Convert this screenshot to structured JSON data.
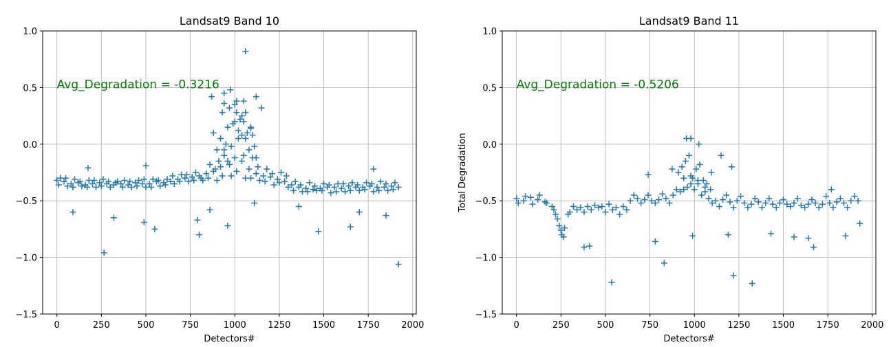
{
  "chart_data": [
    {
      "type": "scatter",
      "title": "Landsat9 Band 10",
      "xlabel": "Detectors#",
      "ylabel": "",
      "xlim": [
        -80,
        2020
      ],
      "ylim": [
        -1.5,
        1.0
      ],
      "xticks": [
        0,
        250,
        500,
        750,
        1000,
        1250,
        1500,
        1750,
        2000
      ],
      "yticks": [
        -1.5,
        -1.0,
        -0.5,
        0.0,
        0.5,
        1.0
      ],
      "xtick_labels": [
        "0",
        "250",
        "500",
        "750",
        "1000",
        "1250",
        "1500",
        "1750",
        "2000"
      ],
      "ytick_labels": [
        "−1.5",
        "−1.0",
        "−0.5",
        "0.0",
        "0.5",
        "1.0"
      ],
      "grid": true,
      "marker": "+",
      "color": "#1f77b4",
      "annotation": {
        "text": "Avg_Degradation = -0.3216",
        "x": 0,
        "y": 0.5,
        "color": "#008000"
      },
      "series": [
        {
          "x": [
            0,
            40,
            80,
            120,
            160,
            200,
            240,
            280,
            320,
            360,
            400,
            440,
            480,
            520,
            560,
            600,
            640,
            680,
            720,
            760,
            800,
            840,
            880,
            920,
            960,
            1000,
            1040,
            1080,
            1120,
            1160,
            1200,
            1240,
            1280,
            1320,
            1360,
            1400,
            1440,
            1480,
            1520,
            1560,
            1600,
            1640,
            1680,
            1720,
            1760,
            1800,
            1840,
            1880,
            1920,
            10,
            50,
            90,
            130,
            170,
            210,
            250,
            290,
            330,
            370,
            410,
            450,
            490,
            530,
            570,
            610,
            650,
            690,
            730,
            770,
            810,
            850,
            890,
            930,
            970,
            1010,
            1050,
            1090,
            1130,
            1170,
            1210,
            1250,
            1290,
            1330,
            1370,
            1410,
            1450,
            1490,
            1530,
            1570,
            1610,
            1650,
            1690,
            1730,
            1770,
            1810,
            1850,
            1890,
            20,
            60,
            100,
            140,
            180,
            220,
            260,
            300,
            340,
            380,
            420,
            460,
            500,
            540,
            580,
            620,
            660,
            700,
            740,
            780,
            820,
            860,
            900,
            940,
            980,
            1020,
            1060,
            1100,
            1140,
            1180,
            1220,
            1260,
            1300,
            1340,
            1380,
            1420,
            1460,
            1500,
            1540,
            1580,
            1620,
            1660,
            1700,
            1740,
            1780,
            1820,
            1860,
            1900,
            880,
            900,
            920,
            940,
            960,
            980,
            1000,
            1020,
            1040,
            1060,
            1080,
            1100,
            1120,
            910,
            950,
            990,
            1030,
            1070,
            1110,
            930,
            970,
            1010,
            1050,
            1090,
            940,
            1000,
            1060,
            1060,
            1050,
            975,
            870,
            1010,
            1120,
            1150,
            940,
            1040,
            1090,
            265,
            320,
            490,
            550,
            790,
            800,
            960,
            1470,
            1650,
            1920,
            90,
            175,
            500,
            860,
            1110,
            1360,
            1700,
            1780,
            1850
          ],
          "y": [
            -0.32,
            -0.33,
            -0.35,
            -0.34,
            -0.36,
            -0.35,
            -0.34,
            -0.35,
            -0.36,
            -0.35,
            -0.36,
            -0.34,
            -0.35,
            -0.35,
            -0.33,
            -0.34,
            -0.33,
            -0.31,
            -0.3,
            -0.29,
            -0.28,
            -0.26,
            -0.24,
            -0.2,
            -0.15,
            -0.12,
            -0.15,
            -0.22,
            -0.26,
            -0.28,
            -0.29,
            -0.31,
            -0.33,
            -0.36,
            -0.38,
            -0.39,
            -0.4,
            -0.39,
            -0.38,
            -0.38,
            -0.39,
            -0.37,
            -0.38,
            -0.38,
            -0.37,
            -0.38,
            -0.38,
            -0.37,
            -0.38,
            -0.36,
            -0.3,
            -0.38,
            -0.33,
            -0.38,
            -0.32,
            -0.37,
            -0.33,
            -0.34,
            -0.38,
            -0.33,
            -0.37,
            -0.31,
            -0.38,
            -0.32,
            -0.36,
            -0.28,
            -0.33,
            -0.27,
            -0.32,
            -0.3,
            -0.3,
            -0.22,
            -0.28,
            -0.18,
            -0.24,
            -0.1,
            -0.3,
            -0.2,
            -0.33,
            -0.26,
            -0.34,
            -0.28,
            -0.41,
            -0.36,
            -0.42,
            -0.37,
            -0.41,
            -0.36,
            -0.42,
            -0.35,
            -0.41,
            -0.36,
            -0.4,
            -0.35,
            -0.41,
            -0.35,
            -0.4,
            -0.3,
            -0.37,
            -0.31,
            -0.37,
            -0.32,
            -0.38,
            -0.31,
            -0.38,
            -0.33,
            -0.32,
            -0.38,
            -0.32,
            -0.38,
            -0.31,
            -0.37,
            -0.31,
            -0.35,
            -0.27,
            -0.33,
            -0.25,
            -0.32,
            -0.18,
            -0.32,
            -0.05,
            -0.28,
            0.05,
            -0.3,
            -0.12,
            -0.32,
            -0.22,
            -0.36,
            -0.25,
            -0.38,
            -0.33,
            -0.42,
            -0.34,
            -0.41,
            -0.35,
            -0.43,
            -0.35,
            -0.42,
            -0.34,
            -0.41,
            -0.34,
            -0.42,
            -0.33,
            -0.41,
            -0.34,
            0.1,
            -0.05,
            0.05,
            -0.1,
            0.15,
            -0.02,
            0.2,
            0.12,
            0.25,
            0.05,
            -0.05,
            0.08,
            -0.12,
            -0.15,
            0.0,
            0.18,
            0.22,
            0.1,
            -0.02,
            0.28,
            0.32,
            0.38,
            0.2,
            0.15,
            0.45,
            0.35,
            0.28,
            0.82,
            0.38,
            0.48,
            0.42,
            0.28,
            0.42,
            0.32,
            0.36,
            0.08,
            0.14,
            -0.96,
            -0.65,
            -0.69,
            -0.75,
            -0.67,
            -0.8,
            -0.72,
            -0.77,
            -0.73,
            -1.06,
            -0.6,
            -0.21,
            -0.19,
            -0.58,
            -0.52,
            -0.55,
            -0.6,
            -0.22,
            -0.63
          ]
        }
      ]
    },
    {
      "type": "scatter",
      "title": "Landsat9 Band 11",
      "xlabel": "Detectors#",
      "ylabel": "Total Degradation",
      "xlim": [
        -80,
        2020
      ],
      "ylim": [
        -1.5,
        1.0
      ],
      "xticks": [
        0,
        250,
        500,
        750,
        1000,
        1250,
        1500,
        1750,
        2000
      ],
      "yticks": [
        -1.5,
        -1.0,
        -0.5,
        0.0,
        0.5,
        1.0
      ],
      "xtick_labels": [
        "0",
        "250",
        "500",
        "750",
        "1000",
        "1250",
        "1500",
        "1750",
        "2000"
      ],
      "ytick_labels": [
        "−1.5",
        "−1.0",
        "−0.5",
        "0.0",
        "0.5",
        "1.0"
      ],
      "grid": true,
      "marker": "+",
      "color": "#1f77b4",
      "annotation": {
        "text": "Avg_Degradation = -0.5206",
        "x": 0,
        "y": 0.5,
        "color": "#008000"
      },
      "series": [
        {
          "x": [
            0,
            40,
            80,
            120,
            160,
            200,
            220,
            240,
            255,
            270,
            290,
            320,
            360,
            400,
            440,
            480,
            520,
            560,
            600,
            640,
            680,
            720,
            760,
            800,
            840,
            880,
            920,
            960,
            1000,
            1040,
            1080,
            1120,
            1160,
            1200,
            1240,
            1280,
            1320,
            1360,
            1400,
            1440,
            1480,
            1520,
            1560,
            1600,
            1640,
            1680,
            1720,
            1760,
            1800,
            1840,
            1880,
            1920,
            10,
            50,
            90,
            130,
            170,
            210,
            230,
            250,
            265,
            300,
            340,
            380,
            420,
            460,
            500,
            540,
            580,
            620,
            660,
            700,
            740,
            780,
            820,
            860,
            900,
            940,
            980,
            1020,
            1060,
            1100,
            1140,
            1180,
            1220,
            1260,
            1300,
            1340,
            1380,
            1420,
            1460,
            1500,
            1540,
            1580,
            1620,
            1660,
            1700,
            1740,
            1780,
            1820,
            1860,
            1900,
            910,
            930,
            950,
            970,
            990,
            1010,
            1030,
            1050,
            1070,
            1090,
            940,
            980,
            1020,
            1060,
            955,
            980,
            1025,
            1150,
            740,
            1210,
            875,
            1095,
            380,
            410,
            535,
            830,
            1220,
            1325,
            1670,
            1850,
            1930,
            780,
            990,
            1190,
            1430,
            1560,
            1640,
            1770
          ],
          "y": [
            -0.48,
            -0.5,
            -0.47,
            -0.49,
            -0.51,
            -0.55,
            -0.62,
            -0.72,
            -0.8,
            -0.74,
            -0.62,
            -0.55,
            -0.56,
            -0.55,
            -0.54,
            -0.55,
            -0.53,
            -0.56,
            -0.55,
            -0.5,
            -0.48,
            -0.49,
            -0.5,
            -0.49,
            -0.48,
            -0.45,
            -0.42,
            -0.38,
            -0.4,
            -0.45,
            -0.48,
            -0.5,
            -0.49,
            -0.51,
            -0.5,
            -0.52,
            -0.53,
            -0.51,
            -0.52,
            -0.53,
            -0.52,
            -0.53,
            -0.52,
            -0.54,
            -0.53,
            -0.52,
            -0.53,
            -0.52,
            -0.51,
            -0.52,
            -0.5,
            -0.5,
            -0.52,
            -0.46,
            -0.53,
            -0.45,
            -0.52,
            -0.58,
            -0.66,
            -0.76,
            -0.82,
            -0.6,
            -0.58,
            -0.6,
            -0.58,
            -0.56,
            -0.6,
            -0.58,
            -0.62,
            -0.58,
            -0.45,
            -0.52,
            -0.45,
            -0.52,
            -0.44,
            -0.52,
            -0.4,
            -0.3,
            -0.35,
            -0.32,
            -0.42,
            -0.52,
            -0.55,
            -0.45,
            -0.56,
            -0.46,
            -0.56,
            -0.48,
            -0.56,
            -0.48,
            -0.56,
            -0.49,
            -0.55,
            -0.48,
            -0.56,
            -0.49,
            -0.56,
            -0.46,
            -0.56,
            -0.48,
            -0.56,
            -0.46,
            -0.25,
            -0.2,
            -0.15,
            -0.1,
            -0.3,
            -0.22,
            -0.18,
            -0.32,
            -0.35,
            -0.4,
            -0.4,
            -0.28,
            -0.35,
            -0.38,
            0.05,
            0.05,
            0.0,
            -0.1,
            -0.27,
            -0.2,
            -0.22,
            -0.25,
            -0.91,
            -0.9,
            -1.22,
            -1.05,
            -1.16,
            -1.23,
            -0.91,
            -0.81,
            -0.7,
            -0.86,
            -0.81,
            -0.8,
            -0.79,
            -0.82,
            -0.83,
            -0.4
          ],
          "y_note": ""
        }
      ]
    }
  ]
}
